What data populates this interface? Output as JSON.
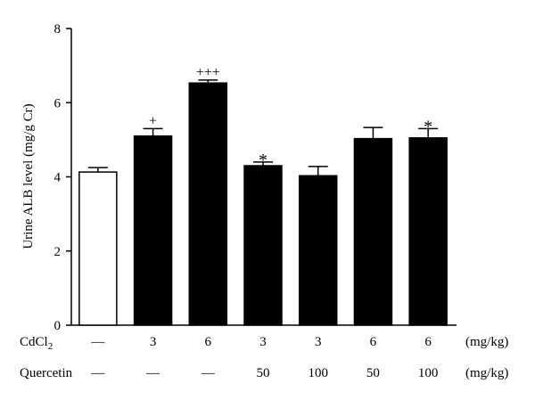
{
  "chart_data": {
    "type": "bar",
    "title": "",
    "xlabel": "",
    "ylabel": "Urine ALB level (mg/g Cr)",
    "ylim": [
      0,
      8
    ],
    "yticks": [
      "0",
      "2",
      "4",
      "6",
      "8"
    ],
    "grid": false,
    "legend": "none",
    "values": [
      4.13,
      5.1,
      6.53,
      4.3,
      4.03,
      5.03,
      5.05
    ],
    "errors": [
      0.12,
      0.2,
      0.08,
      0.1,
      0.25,
      0.3,
      0.25
    ],
    "bar_colors": [
      "#ffffff",
      "#000000",
      "#000000",
      "#000000",
      "#000000",
      "#000000",
      "#000000"
    ],
    "significance": [
      "",
      "+",
      "+++",
      "*",
      "",
      "",
      "*"
    ],
    "treatment_rows": [
      {
        "label": "CdCl",
        "label_sub": "2",
        "values": [
          "—",
          "3",
          "6",
          "3",
          "3",
          "6",
          "6"
        ],
        "unit": "(mg/kg)"
      },
      {
        "label": "Quercetin",
        "label_sub": "",
        "values": [
          "—",
          "—",
          "—",
          "50",
          "100",
          "50",
          "100"
        ],
        "unit": "(mg/kg)"
      }
    ]
  }
}
